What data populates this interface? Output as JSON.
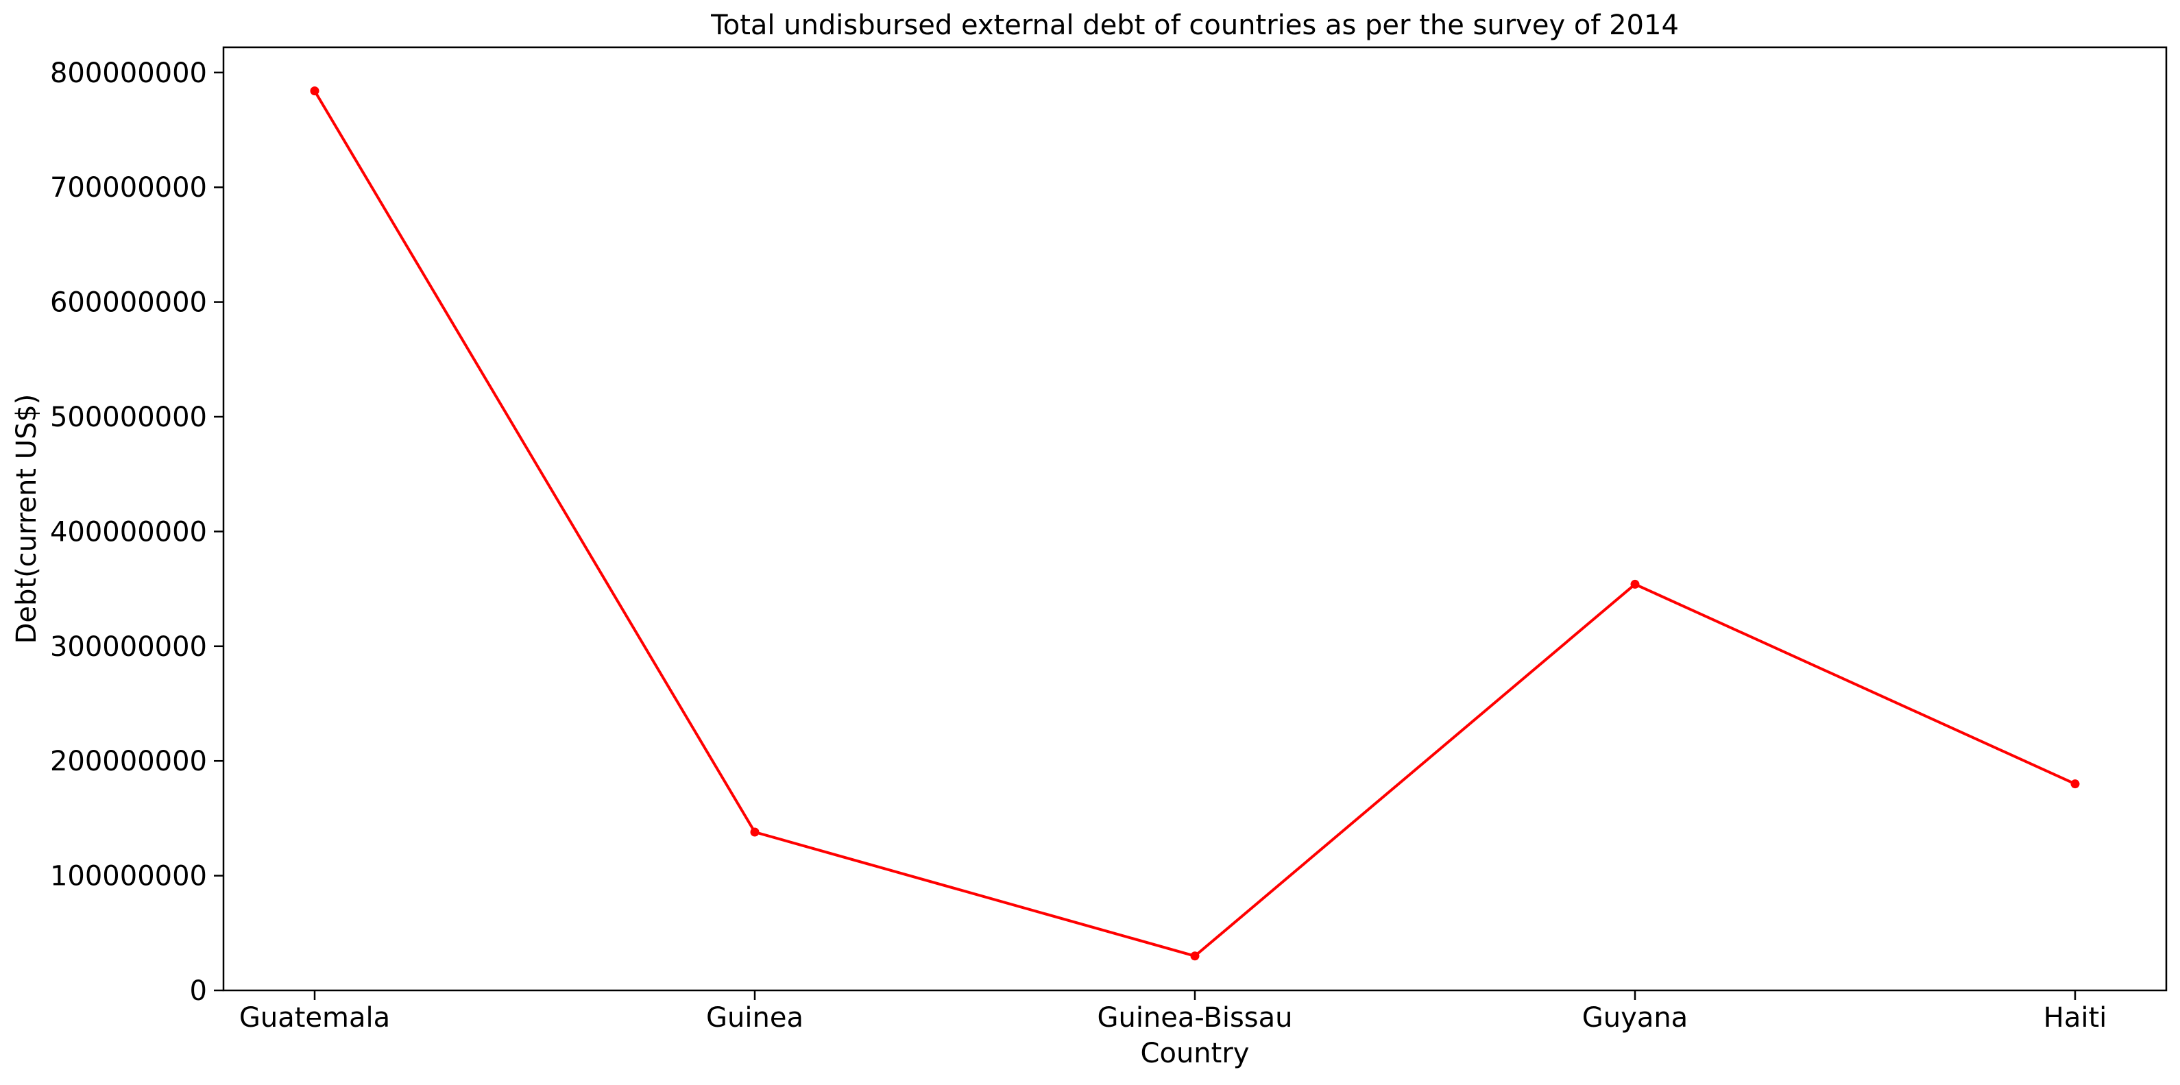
{
  "chart_data": {
    "type": "line",
    "title": "Total undisbursed external debt of countries as per the survey of 2014",
    "xlabel": "Country",
    "ylabel": "Debt(current US$)",
    "categories": [
      "Guatemala",
      "Guinea",
      "Guinea-Bissau",
      "Guyana",
      "Haiti"
    ],
    "series": [
      {
        "values": [
          784000000,
          138000000,
          30000000,
          354000000,
          180000000
        ],
        "color": "#ff0000",
        "marker": "circle"
      }
    ],
    "ylim": [
      0,
      822000000
    ],
    "yticks": [
      0,
      100000000,
      200000000,
      300000000,
      400000000,
      500000000,
      600000000,
      700000000,
      800000000
    ],
    "ytick_labels": [
      "0",
      "100000000",
      "200000000",
      "300000000",
      "400000000",
      "500000000",
      "600000000",
      "700000000",
      "800000000"
    ],
    "grid": false,
    "legend": "none"
  }
}
